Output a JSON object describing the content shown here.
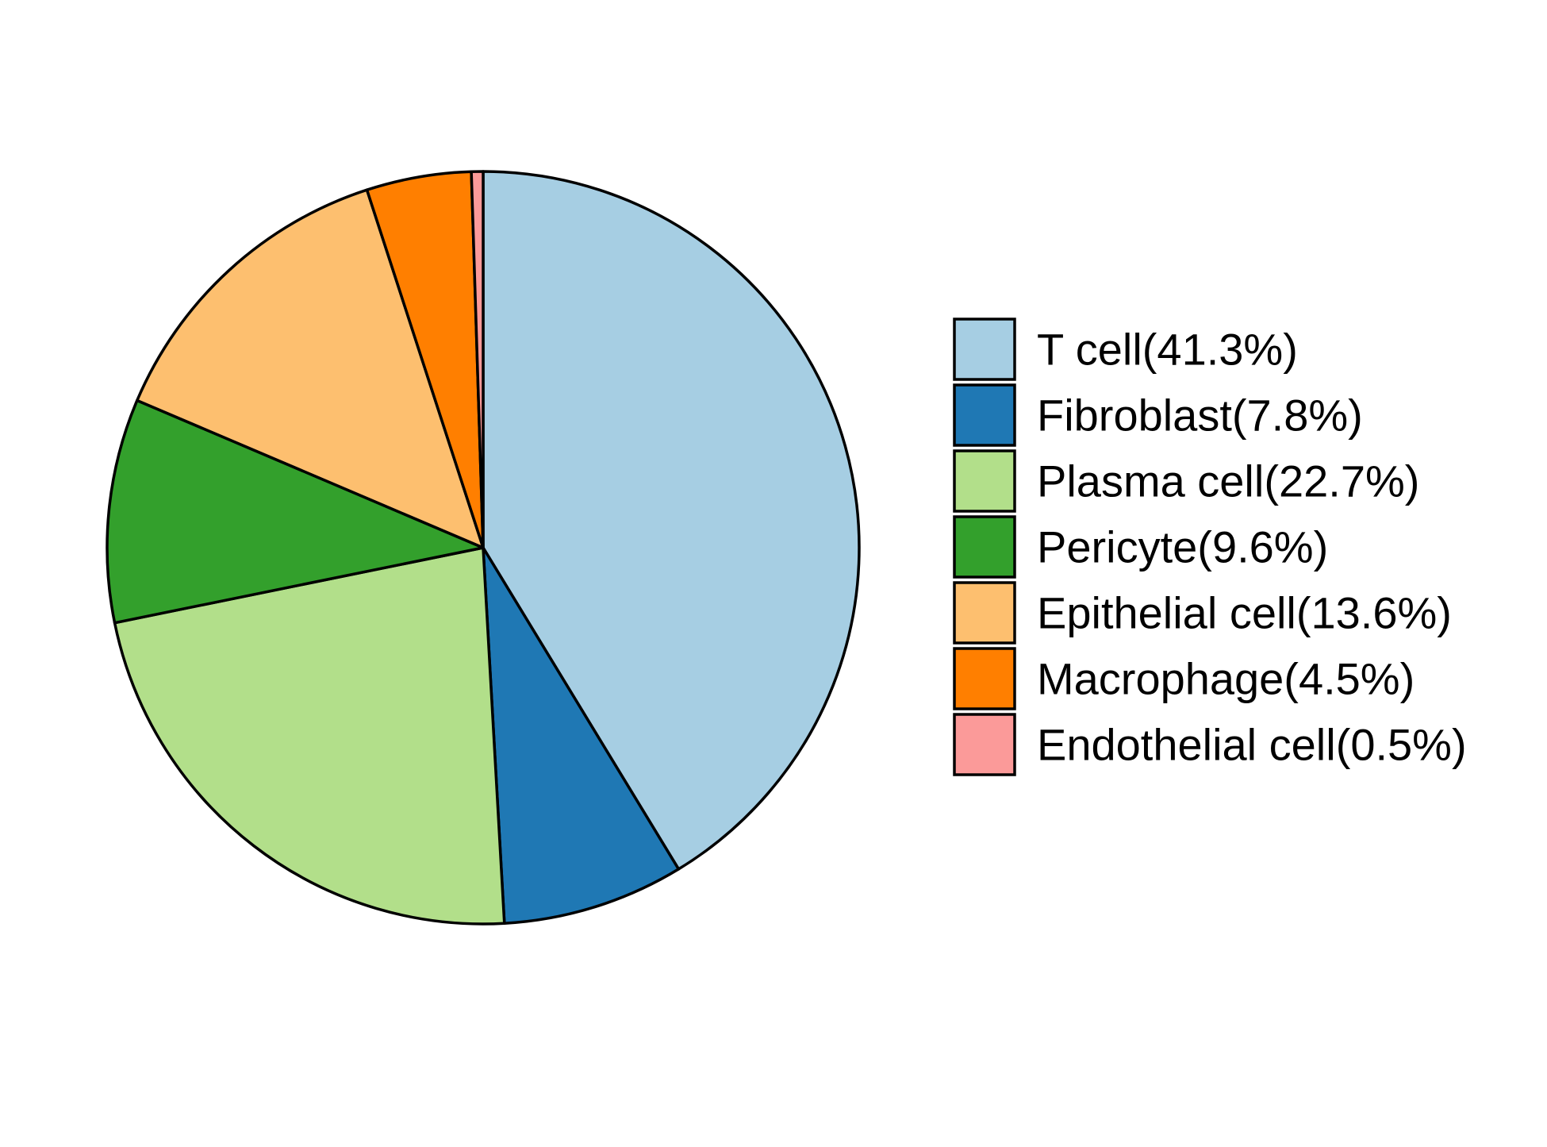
{
  "chart_data": {
    "type": "pie",
    "title": "",
    "legend_position": "right",
    "start_angle": "12 o'clock",
    "direction": "clockwise",
    "slices": [
      {
        "label": "T cell(41.3%)",
        "value": 41.3,
        "color": "#A6CEE3"
      },
      {
        "label": "Fibroblast(7.8%)",
        "value": 7.8,
        "color": "#1F78B4"
      },
      {
        "label": "Plasma cell(22.7%)",
        "value": 22.7,
        "color": "#B2DF8A"
      },
      {
        "label": "Pericyte(9.6%)",
        "value": 9.6,
        "color": "#33A02C"
      },
      {
        "label": "Epithelial cell(13.6%)",
        "value": 13.6,
        "color": "#FDBF6F"
      },
      {
        "label": "Macrophage(4.5%)",
        "value": 4.5,
        "color": "#FF7F00"
      },
      {
        "label": "Endothelial cell(0.5%)",
        "value": 0.5,
        "color": "#FB9A99"
      }
    ]
  }
}
